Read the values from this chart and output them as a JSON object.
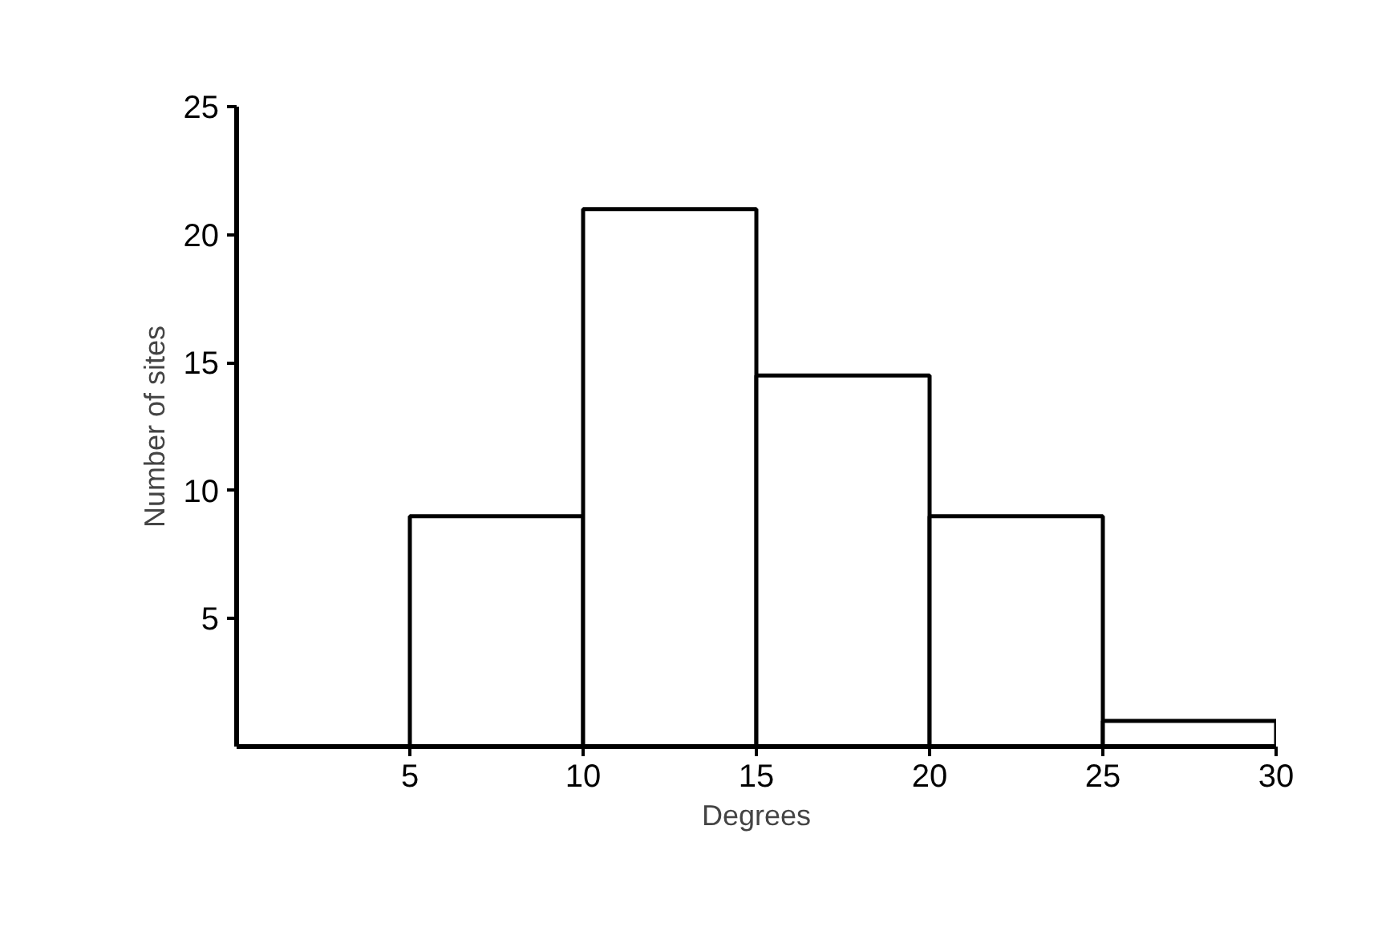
{
  "chart_data": {
    "type": "histogram",
    "xlabel": "Degrees",
    "ylabel": "Number of sites",
    "bins": [
      5,
      10,
      15,
      20,
      25,
      30
    ],
    "values": [
      9,
      21,
      14.5,
      9,
      1
    ],
    "color": "#ffffff",
    "xlim": [
      0,
      30
    ],
    "ylim": [
      0,
      25
    ],
    "xticks": [
      5,
      10,
      15,
      20,
      25,
      30
    ],
    "yticks": [
      5,
      10,
      15,
      20,
      25
    ],
    "grid": false
  }
}
